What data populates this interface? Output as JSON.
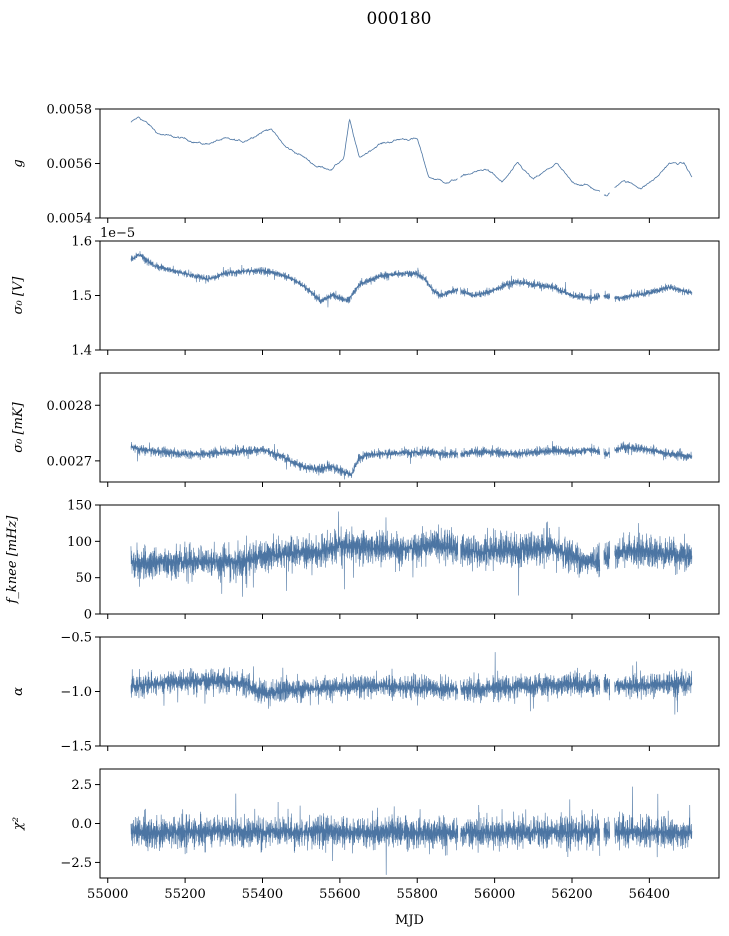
{
  "figure_title": "000180",
  "colors": {
    "series": "#4c75a3",
    "axis": "#000000",
    "background": "#ffffff"
  },
  "chart_data": [
    {
      "type": "line",
      "ylabel": "g",
      "ylim": [
        0.0054,
        0.0058
      ],
      "yticks": [
        0.0054,
        0.0056,
        0.0058
      ],
      "ytick_labels": [
        "0.0054",
        "0.0056",
        "0.0058"
      ],
      "offset_text": "",
      "x": [
        55060,
        55080,
        55100,
        55130,
        55160,
        55200,
        55250,
        55300,
        55350,
        55390,
        55420,
        55460,
        55500,
        55540,
        55580,
        55610,
        55625,
        55650,
        55700,
        55760,
        55800,
        55830,
        55880,
        55930,
        55980,
        56020,
        56060,
        56100,
        56160,
        56200,
        56240,
        56290,
        56330,
        56380,
        56420,
        56450,
        56490,
        56510
      ],
      "y": [
        0.00575,
        0.00577,
        0.00575,
        0.00571,
        0.0057,
        0.00569,
        0.00567,
        0.00569,
        0.00568,
        0.00571,
        0.00573,
        0.00566,
        0.00563,
        0.00559,
        0.00558,
        0.00562,
        0.00576,
        0.00562,
        0.00567,
        0.00569,
        0.00569,
        0.00555,
        0.00553,
        0.00556,
        0.00558,
        0.00553,
        0.0056,
        0.00554,
        0.0056,
        0.00553,
        0.00552,
        0.00548,
        0.00554,
        0.00551,
        0.00555,
        0.0056,
        0.0056,
        0.00555
      ],
      "noise": 4.5e-06,
      "density": "line"
    },
    {
      "type": "line",
      "ylabel": "σ₀ [V]",
      "ylim": [
        1.4e-05,
        1.6e-05
      ],
      "yticks": [
        1.4e-05,
        1.5e-05,
        1.6e-05
      ],
      "ytick_labels": [
        "1.4",
        "1.5",
        "1.6"
      ],
      "offset_text": "1e−5",
      "x": [
        55060,
        55080,
        55120,
        55200,
        55260,
        55300,
        55350,
        55400,
        55440,
        55480,
        55520,
        55550,
        55580,
        55620,
        55650,
        55700,
        55750,
        55800,
        55820,
        55840,
        55860,
        55900,
        55950,
        56000,
        56030,
        56060,
        56100,
        56150,
        56200,
        56250,
        56280,
        56320,
        56360,
        56400,
        56450,
        56510
      ],
      "y": [
        1.565e-05,
        1.575e-05,
        1.555e-05,
        1.54e-05,
        1.53e-05,
        1.54e-05,
        1.545e-05,
        1.545e-05,
        1.54e-05,
        1.53e-05,
        1.51e-05,
        1.49e-05,
        1.5e-05,
        1.49e-05,
        1.52e-05,
        1.535e-05,
        1.54e-05,
        1.54e-05,
        1.53e-05,
        1.51e-05,
        1.5e-05,
        1.51e-05,
        1.5e-05,
        1.51e-05,
        1.52e-05,
        1.525e-05,
        1.52e-05,
        1.515e-05,
        1.5e-05,
        1.495e-05,
        1.5e-05,
        1.495e-05,
        1.5e-05,
        1.505e-05,
        1.515e-05,
        1.505e-05
      ],
      "noise": 7e-08,
      "density": "band"
    },
    {
      "type": "line",
      "ylabel": "σ₀ [mK]",
      "ylim": [
        0.002662,
        0.002858
      ],
      "yticks": [
        0.0027,
        0.0028
      ],
      "ytick_labels": [
        "0.0027",
        "0.0028"
      ],
      "offset_text": "",
      "x": [
        55060,
        55100,
        55150,
        55200,
        55250,
        55300,
        55350,
        55400,
        55450,
        55500,
        55540,
        55580,
        55610,
        55630,
        55650,
        55680,
        55720,
        55780,
        55830,
        55870,
        55910,
        55950,
        56000,
        56050,
        56100,
        56150,
        56200,
        56240,
        56290,
        56330,
        56380,
        56420,
        56460,
        56510
      ],
      "y": [
        0.002725,
        0.00272,
        0.002715,
        0.002712,
        0.002712,
        0.002715,
        0.002718,
        0.00272,
        0.002708,
        0.00269,
        0.002685,
        0.00269,
        0.00268,
        0.002675,
        0.002705,
        0.002712,
        0.002713,
        0.002715,
        0.002716,
        0.002712,
        0.002713,
        0.002715,
        0.002716,
        0.002713,
        0.002715,
        0.002718,
        0.002716,
        0.00272,
        0.002712,
        0.002725,
        0.002722,
        0.002717,
        0.002712,
        0.002708
      ],
      "noise": 9e-06,
      "density": "band"
    },
    {
      "type": "line",
      "ylabel": "f_knee [mHz]",
      "ylim": [
        0,
        150
      ],
      "yticks": [
        0,
        50,
        100,
        150
      ],
      "ytick_labels": [
        "0",
        "50",
        "100",
        "150"
      ],
      "offset_text": "",
      "x": [
        55060,
        55150,
        55250,
        55350,
        55400,
        55500,
        55550,
        55600,
        55650,
        55750,
        55850,
        55900,
        55950,
        56050,
        56150,
        56200,
        56240,
        56270,
        56300,
        56330,
        56400,
        56450,
        56510
      ],
      "y": [
        70,
        72,
        72,
        72,
        80,
        85,
        85,
        95,
        92,
        88,
        95,
        88,
        85,
        88,
        92,
        80,
        72,
        72,
        80,
        88,
        85,
        82,
        80
      ],
      "noise": 24,
      "density": "band"
    },
    {
      "type": "line",
      "ylabel": "α",
      "ylim": [
        -1.5,
        -0.5
      ],
      "yticks": [
        -1.5,
        -1.0,
        -0.5
      ],
      "ytick_labels": [
        "−1.5",
        "−1.0",
        "−0.5"
      ],
      "offset_text": "",
      "x": [
        55060,
        55150,
        55250,
        55350,
        55400,
        55450,
        55500,
        55600,
        55700,
        55800,
        55900,
        56000,
        56100,
        56200,
        56280,
        56350,
        56450,
        56510
      ],
      "y": [
        -0.95,
        -0.92,
        -0.9,
        -0.92,
        -1.02,
        -1.0,
        -0.98,
        -0.96,
        -0.95,
        -0.96,
        -0.98,
        -0.97,
        -0.95,
        -0.93,
        -0.94,
        -0.95,
        -0.93,
        -0.93
      ],
      "noise": 0.11,
      "density": "band"
    },
    {
      "type": "line",
      "ylabel": "χ²",
      "ylim": [
        -3.5,
        3.5
      ],
      "yticks": [
        -2.5,
        0.0,
        2.5
      ],
      "ytick_labels": [
        "−2.5",
        "0.0",
        "2.5"
      ],
      "offset_text": "",
      "x": [
        55060,
        55300,
        55600,
        55900,
        56200,
        56510
      ],
      "y": [
        -0.6,
        -0.5,
        -0.55,
        -0.6,
        -0.55,
        -0.6
      ],
      "noise": 1.05,
      "density": "band"
    }
  ],
  "x_axis": {
    "label": "MJD",
    "xlim": [
      54980,
      56580
    ],
    "xticks": [
      55000,
      55200,
      55400,
      55600,
      55800,
      56000,
      56200,
      56400
    ],
    "xtick_labels": [
      "55000",
      "55200",
      "55400",
      "55600",
      "55800",
      "56000",
      "56200",
      "56400"
    ],
    "gaps": [
      [
        55905,
        55912
      ],
      [
        56272,
        56282
      ],
      [
        56298,
        56310
      ]
    ]
  }
}
